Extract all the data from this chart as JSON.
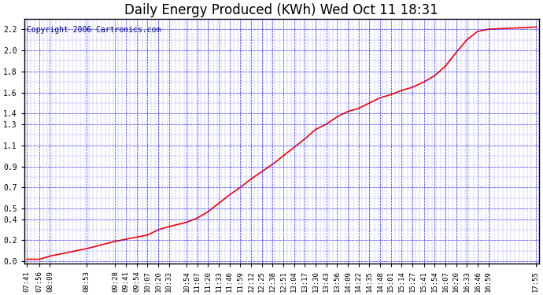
{
  "title": "Daily Energy Produced (KWh) Wed Oct 11 18:31",
  "copyright": "Copyright 2006 Cartronics.com",
  "line_color": "#ff0000",
  "bg_color": "#ffffff",
  "grid_color": "#0000ff",
  "ytick_vals": [
    0.0,
    0.2,
    0.4,
    0.5,
    0.7,
    0.9,
    1.1,
    1.3,
    1.4,
    1.6,
    1.8,
    2.0,
    2.2
  ],
  "x_labels": [
    "07:41",
    "07:56",
    "08:09",
    "08:53",
    "09:28",
    "09:41",
    "09:54",
    "10:07",
    "10:20",
    "10:33",
    "10:54",
    "11:07",
    "11:20",
    "11:33",
    "11:46",
    "11:59",
    "12:12",
    "12:25",
    "12:38",
    "12:51",
    "13:04",
    "13:17",
    "13:30",
    "13:43",
    "13:56",
    "14:09",
    "14:22",
    "14:35",
    "14:48",
    "15:01",
    "15:14",
    "15:27",
    "15:41",
    "15:54",
    "16:07",
    "16:20",
    "16:33",
    "16:46",
    "16:59",
    "17:55"
  ],
  "x_values": [
    0,
    15,
    28,
    72,
    107,
    120,
    133,
    146,
    159,
    172,
    193,
    206,
    219,
    232,
    245,
    258,
    271,
    284,
    297,
    310,
    323,
    336,
    349,
    362,
    375,
    388,
    401,
    414,
    427,
    440,
    453,
    466,
    480,
    493,
    506,
    519,
    532,
    545,
    558,
    615,
    616
  ],
  "y_values": [
    0.02,
    0.02,
    0.05,
    0.12,
    0.19,
    0.21,
    0.23,
    0.25,
    0.3,
    0.33,
    0.37,
    0.41,
    0.47,
    0.55,
    0.63,
    0.7,
    0.78,
    0.85,
    0.92,
    1.0,
    1.08,
    1.16,
    1.25,
    1.3,
    1.37,
    1.42,
    1.45,
    1.5,
    1.55,
    1.58,
    1.62,
    1.65,
    1.7,
    1.76,
    1.85,
    1.98,
    2.1,
    2.18,
    2.2,
    2.22,
    2.22
  ],
  "title_fontsize": 12,
  "tick_fontsize": 6.5,
  "copyright_fontsize": 7
}
